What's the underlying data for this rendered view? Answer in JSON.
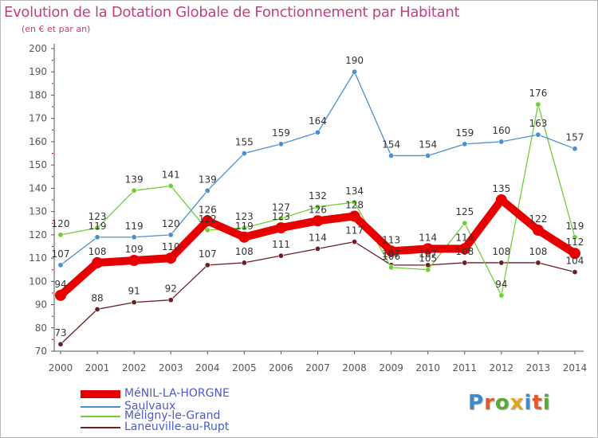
{
  "header": {
    "title": "Evolution de la Dotation Globale de Fonctionnement par Habitant",
    "subtitle": "(en € et par an)"
  },
  "colors": {
    "title": "#c0417e",
    "axis": "#555555",
    "grid_tick": "#d80000",
    "legend_text": "#4b5bc6",
    "label_text": "#333333"
  },
  "logo": {
    "text": "Proxiti",
    "letter_colors": [
      "#3f8ac9",
      "#e25b2a",
      "#5aa73a",
      "#e0a41f",
      "#3f8ac9",
      "#e25b2a",
      "#5aa73a"
    ]
  },
  "chart_data": {
    "type": "line",
    "title": "Evolution de la Dotation Globale de Fonctionnement par Habitant",
    "subtitle": "(en € et par an)",
    "xlabel": "",
    "ylabel": "",
    "x": [
      "2000",
      "2001",
      "2002",
      "2003",
      "2004",
      "2005",
      "2006",
      "2007",
      "2008",
      "2009",
      "2010",
      "2011",
      "2012",
      "2013",
      "2014"
    ],
    "ylim": [
      70,
      200
    ],
    "yticks": [
      70,
      80,
      90,
      100,
      110,
      120,
      130,
      140,
      150,
      160,
      170,
      180,
      190,
      200
    ],
    "series": [
      {
        "name": "MéNIL-LA-HORGNE",
        "color": "#e60000",
        "values": [
          94,
          108,
          109,
          110,
          126,
          119,
          123,
          126,
          128,
          113,
          114,
          114,
          135,
          122,
          112
        ],
        "labels": [
          "94",
          "108",
          "109",
          "110",
          "126",
          "119",
          "123",
          "126",
          "128",
          "113",
          "114",
          "114",
          "135",
          "122",
          "112"
        ]
      },
      {
        "name": "Saulvaux",
        "color": "#4d8fcc",
        "values": [
          107,
          119,
          119,
          120,
          139,
          155,
          159,
          164,
          190,
          154,
          154,
          159,
          160,
          163,
          157
        ],
        "labels": [
          "107",
          "119",
          "119",
          "120",
          "139",
          "155",
          "159",
          "164",
          "190",
          "154",
          "154",
          "159",
          "160",
          "163",
          "157"
        ]
      },
      {
        "name": "Méligny-le-Grand",
        "color": "#70cc38",
        "values": [
          120,
          123,
          139,
          141,
          122,
          123,
          127,
          132,
          134,
          106,
          105,
          125,
          94,
          176,
          119
        ],
        "labels": [
          "120",
          "123",
          "139",
          "141",
          "122",
          "123",
          "127",
          "132",
          "134",
          "106",
          "105",
          "125",
          "94",
          "176",
          "119"
        ]
      },
      {
        "name": "Laneuville-au-Rupt",
        "color": "#6a1f23",
        "values": [
          73,
          88,
          91,
          92,
          107,
          108,
          111,
          114,
          117,
          107,
          107,
          108,
          108,
          108,
          104
        ],
        "labels": [
          "73",
          "88",
          "91",
          "92",
          "107",
          "108",
          "111",
          "114",
          "117",
          "107",
          "107",
          "108",
          "108",
          "108",
          "104"
        ]
      }
    ],
    "legend_position": "bottom-left"
  }
}
